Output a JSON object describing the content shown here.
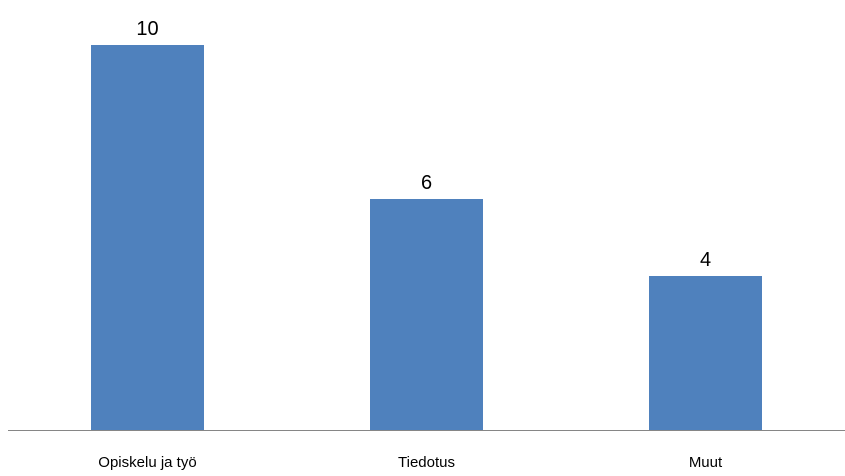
{
  "chart_data": {
    "type": "bar",
    "categories": [
      "Opiskelu ja työ",
      "Tiedotus",
      "Muut"
    ],
    "values": [
      10,
      6,
      4
    ],
    "title": "",
    "xlabel": "",
    "ylabel": "",
    "ylim": [
      0,
      10
    ],
    "grid": false,
    "legend": "none",
    "data_labels": true,
    "bar_color": "#4F81BD",
    "axis_color": "#868686"
  }
}
